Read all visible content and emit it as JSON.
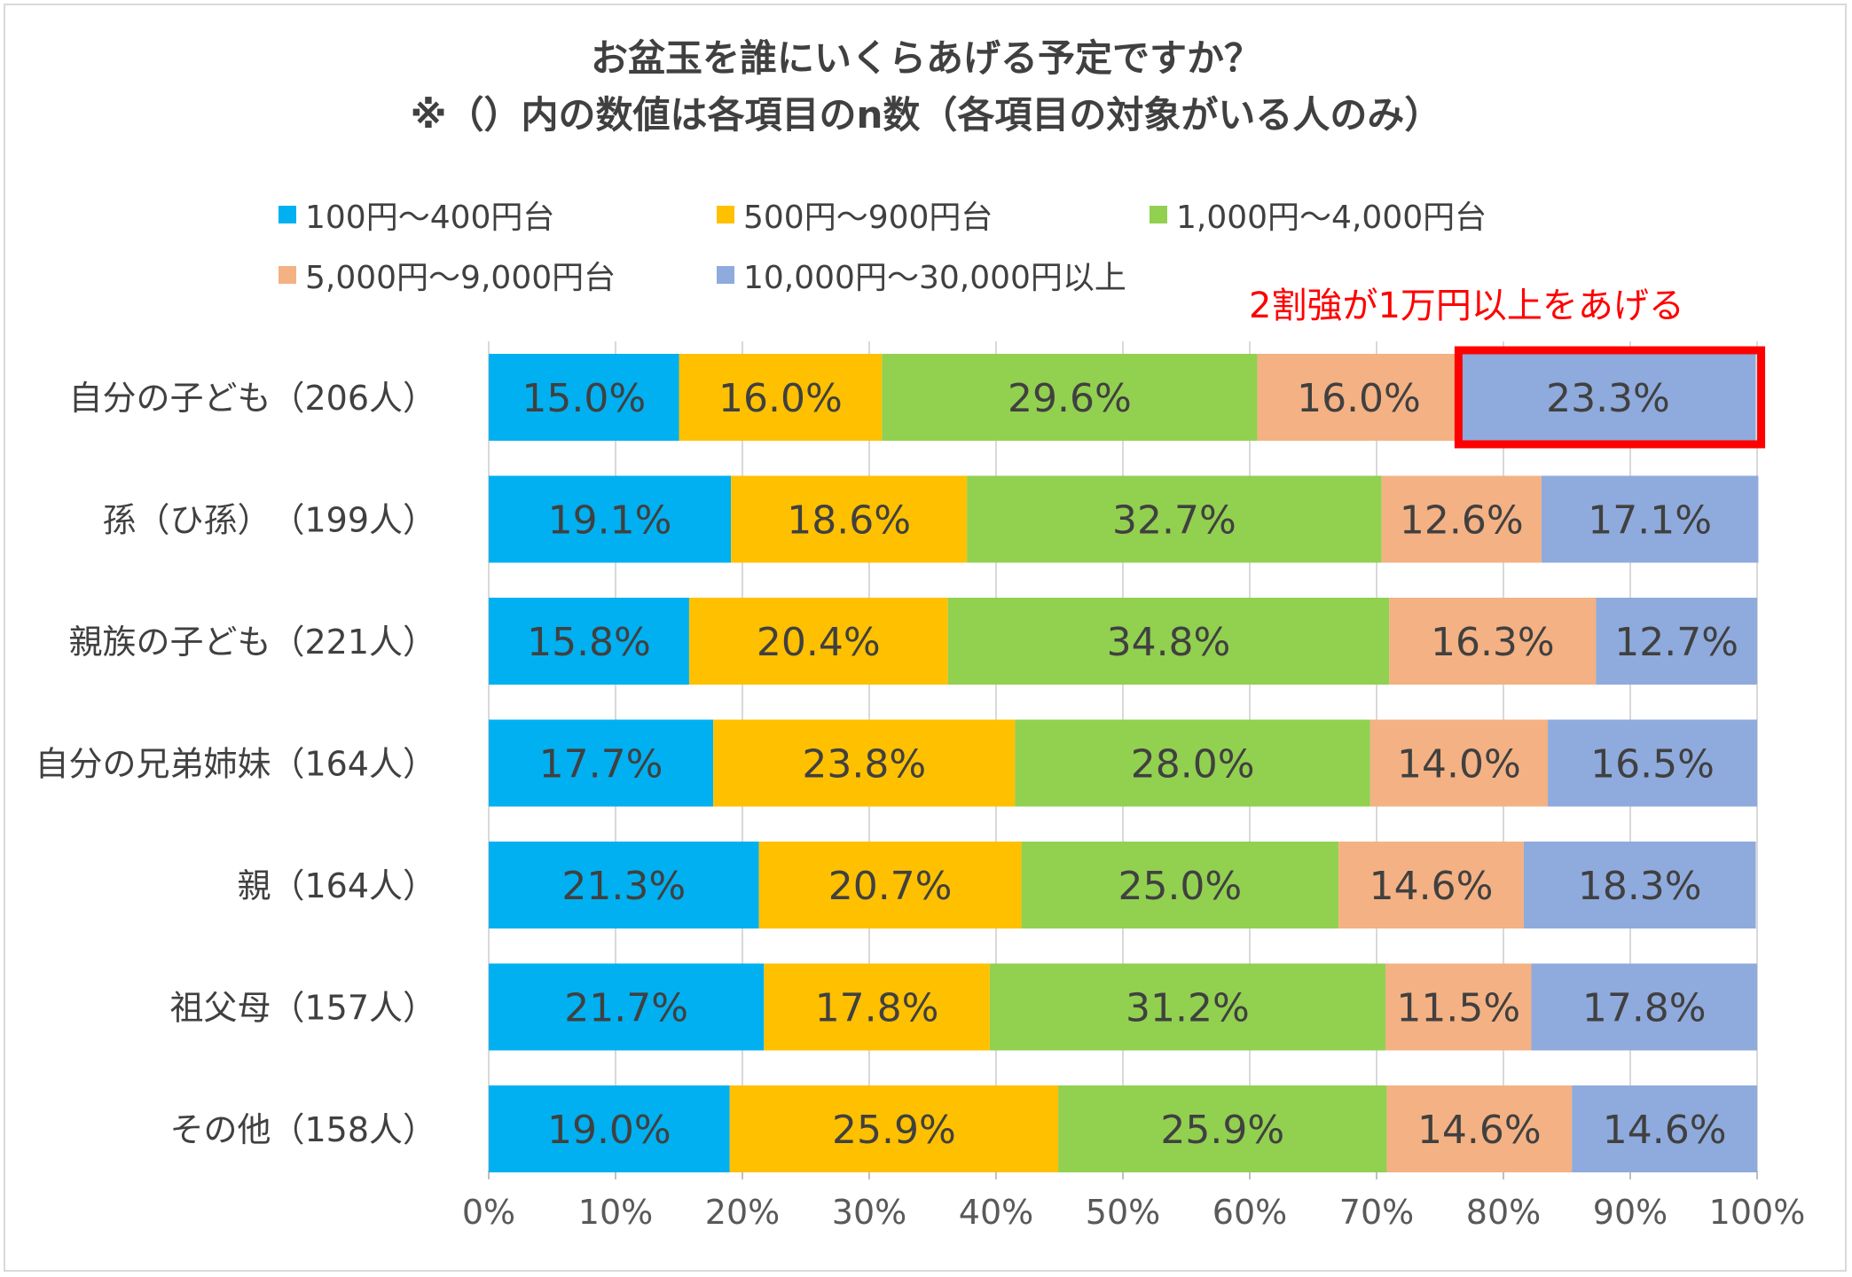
{
  "chart_data": {
    "type": "bar",
    "orientation": "horizontal",
    "stacked": "percent",
    "title": "お盆玉を誰にいくらあげる予定ですか？",
    "subtitle": "※（）内の数値は各項目のn数（各項目の対象がいる人のみ）",
    "categories": [
      "自分の子ども（206人）",
      "孫（ひ孫）　（199人）",
      "親族の子ども（221人）",
      "自分の兄弟姉妹（164人）",
      "親（164人）",
      "祖父母（157人）",
      "その他（158人）"
    ],
    "series": [
      {
        "name": "100円～400円台",
        "color": "#00b0f0",
        "values": [
          15.0,
          19.1,
          15.8,
          17.7,
          21.3,
          21.7,
          19.0
        ]
      },
      {
        "name": "500円～900円台",
        "color": "#ffc000",
        "values": [
          16.0,
          18.6,
          20.4,
          23.8,
          20.7,
          17.8,
          25.9
        ]
      },
      {
        "name": "1,000円～4,000円台",
        "color": "#92d050",
        "values": [
          29.6,
          32.7,
          34.8,
          28.0,
          25.0,
          31.2,
          25.9
        ]
      },
      {
        "name": "5,000円～9,000円台",
        "color": "#f4b183",
        "values": [
          16.0,
          12.6,
          16.3,
          14.0,
          14.6,
          11.5,
          14.6
        ]
      },
      {
        "name": "10,000円～30,000円以上",
        "color": "#8faadc",
        "values": [
          23.3,
          17.1,
          12.7,
          16.5,
          18.3,
          17.8,
          14.6
        ]
      }
    ],
    "xlim": [
      0,
      100
    ],
    "xticks": [
      "0%",
      "10%",
      "20%",
      "30%",
      "40%",
      "50%",
      "60%",
      "70%",
      "80%",
      "90%",
      "100%"
    ],
    "annotation": {
      "text": "2割強が1万円以上をあげる",
      "color": "#ff0000",
      "highlight_category_index": 0,
      "highlight_series_index": 4
    },
    "legend_position": "top",
    "grid": true
  }
}
